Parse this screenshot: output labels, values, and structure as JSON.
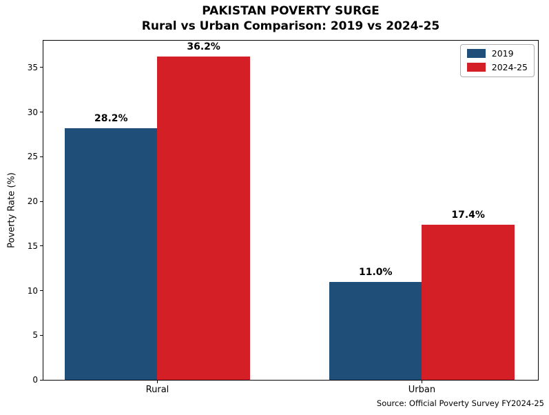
{
  "chart_data": {
    "type": "bar",
    "title": "PAKISTAN POVERTY SURGE",
    "subtitle": "Rural vs Urban Comparison: 2019 vs 2024-25",
    "ylabel": "Poverty Rate (%)",
    "categories": [
      "Rural",
      "Urban"
    ],
    "series": [
      {
        "name": "2019",
        "color": "#1f4e79",
        "values": [
          28.2,
          11.0
        ],
        "labels": [
          "28.2%",
          "11.0%"
        ]
      },
      {
        "name": "2024-25",
        "color": "#d41f26",
        "values": [
          36.2,
          17.4
        ],
        "labels": [
          "36.2%",
          "17.4%"
        ]
      }
    ],
    "yticks": [
      0,
      5,
      10,
      15,
      20,
      25,
      30,
      35
    ],
    "ylim": [
      0,
      38.01
    ],
    "grid": false,
    "legend_position": "upper right",
    "source_note": "Source: Official Poverty Survey FY2024-25"
  }
}
